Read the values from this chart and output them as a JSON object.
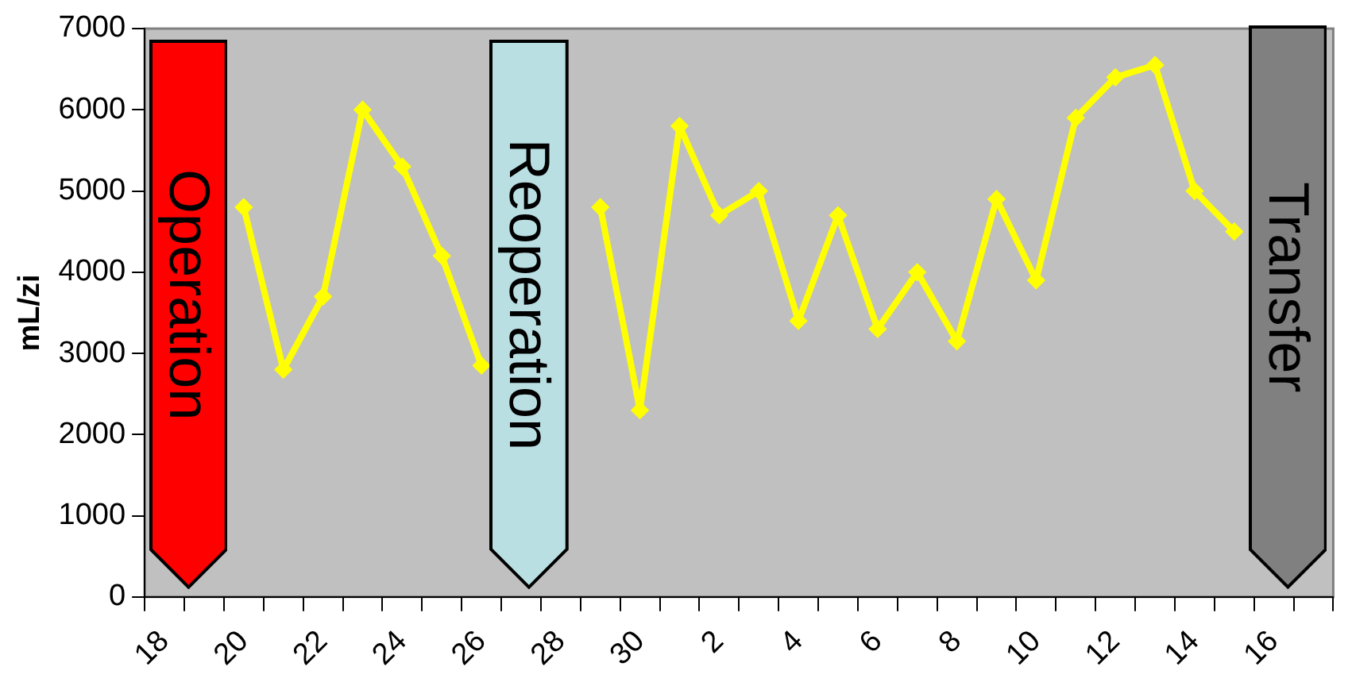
{
  "chart_data": {
    "type": "line",
    "ylabel": "mL/zi",
    "categories": [
      "18",
      null,
      "20",
      null,
      "22",
      null,
      "24",
      null,
      "26",
      null,
      "28",
      null,
      "30",
      null,
      "2",
      null,
      "4",
      null,
      "6",
      null,
      "8",
      null,
      "10",
      null,
      "12",
      null,
      "14",
      null,
      "16",
      null
    ],
    "series": [
      {
        "color": "#ffff00",
        "values": [
          null,
          null,
          4800,
          2800,
          3700,
          6000,
          5300,
          4200,
          2850,
          null,
          null,
          4800,
          2300,
          5800,
          4700,
          5000,
          3400,
          4700,
          3300,
          4000,
          3150,
          4900,
          3900,
          5900,
          6400,
          6550,
          5000,
          4500,
          null,
          null
        ]
      }
    ],
    "ylim": [
      0,
      7000
    ],
    "yticks": [
      0,
      1000,
      2000,
      3000,
      4000,
      5000,
      6000,
      7000
    ],
    "grid": false,
    "legend": false,
    "marker": "diamond",
    "line_style": "solid",
    "annotations": [
      "Operation",
      "Reoperation",
      "Transfer"
    ]
  }
}
